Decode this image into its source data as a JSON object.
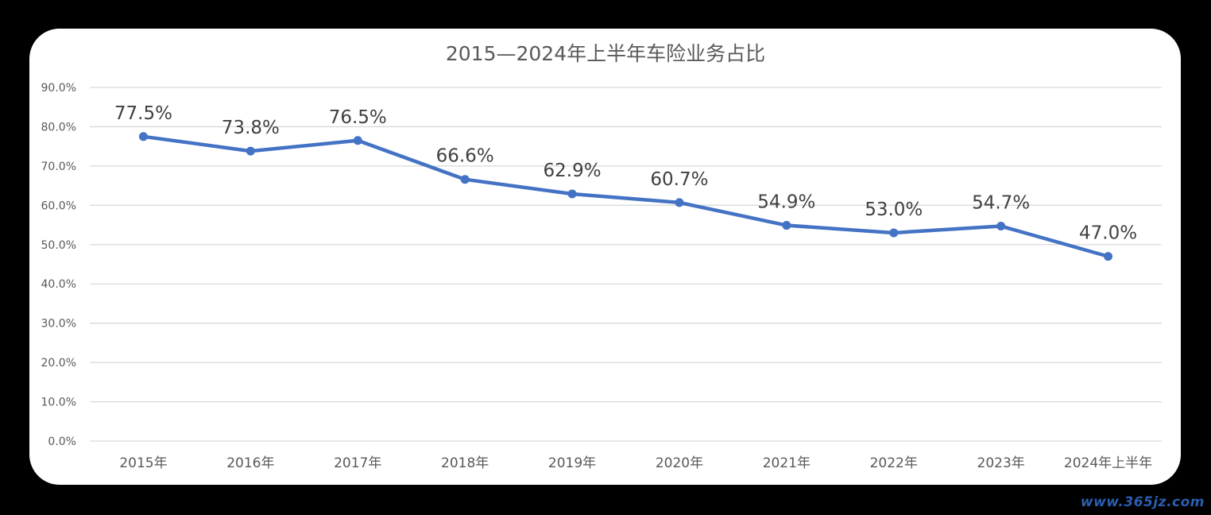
{
  "chart_data": {
    "type": "line",
    "title": "2015—2024年上半年车险业务占比",
    "xlabel": "",
    "ylabel": "",
    "categories": [
      "2015年",
      "2016年",
      "2017年",
      "2018年",
      "2019年",
      "2020年",
      "2021年",
      "2022年",
      "2023年",
      "2024年上半年"
    ],
    "series": [
      {
        "values": [
          77.5,
          73.8,
          76.5,
          66.6,
          62.9,
          60.7,
          54.9,
          53.0,
          54.7,
          47.0
        ],
        "data_labels": [
          "77.5%",
          "73.8%",
          "76.5%",
          "66.6%",
          "62.9%",
          "60.7%",
          "54.9%",
          "53.0%",
          "54.7%",
          "47.0%"
        ]
      }
    ],
    "ylim": [
      0,
      90
    ],
    "yticks": [
      0,
      10,
      20,
      30,
      40,
      50,
      60,
      70,
      80,
      90
    ],
    "ytick_labels": [
      "0.0%",
      "10.0%",
      "20.0%",
      "30.0%",
      "40.0%",
      "50.0%",
      "60.0%",
      "70.0%",
      "80.0%",
      "90.0%"
    ],
    "grid": true,
    "legend": "none",
    "colors": {
      "line": "#4472c4",
      "grid": "#d9d9d9",
      "text": "#595959",
      "label": "#404040",
      "background": "#ffffff",
      "frame": "#000000"
    }
  },
  "watermark": "www.365jz.com"
}
